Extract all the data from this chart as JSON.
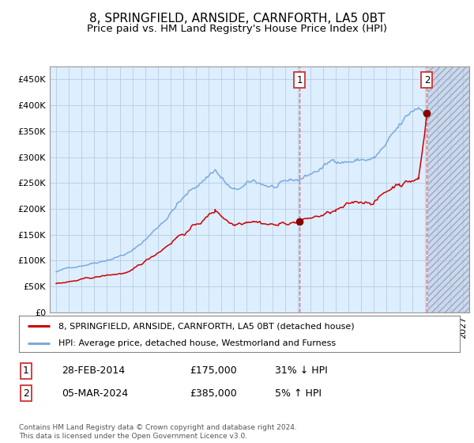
{
  "title": "8, SPRINGFIELD, ARNSIDE, CARNFORTH, LA5 0BT",
  "subtitle": "Price paid vs. HM Land Registry's House Price Index (HPI)",
  "hpi_label": "HPI: Average price, detached house, Westmorland and Furness",
  "property_label": "8, SPRINGFIELD, ARNSIDE, CARNFORTH, LA5 0BT (detached house)",
  "sale1_date": "28-FEB-2014",
  "sale1_price": 175000,
  "sale1_pct": "31% ↓ HPI",
  "sale2_date": "05-MAR-2024",
  "sale2_price": 385000,
  "sale2_pct": "5% ↑ HPI",
  "sale1_year": 2014.15,
  "sale2_year": 2024.17,
  "hpi_color": "#7aaadd",
  "property_color": "#cc0000",
  "dot_color": "#880000",
  "vline_color": "#dd5555",
  "bg_plot": "#ddeeff",
  "bg_future": "#ccd8ee",
  "grid_color": "#b8cce0",
  "title_fontsize": 11,
  "subtitle_fontsize": 9.5,
  "axis_fontsize": 8,
  "legend_fontsize": 8,
  "footer_fontsize": 6.5,
  "ylim": [
    0,
    475000
  ],
  "xlim_left": 1994.5,
  "xlim_right": 2027.5,
  "future_start": 2024.25,
  "copyright_text": "Contains HM Land Registry data © Crown copyright and database right 2024.\nThis data is licensed under the Open Government Licence v3.0."
}
